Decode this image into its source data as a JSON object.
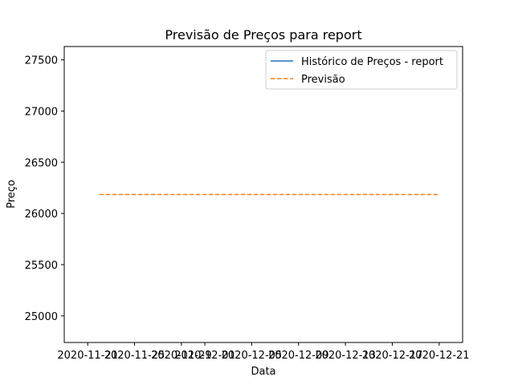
{
  "chart_data": {
    "type": "line",
    "title": "Previsão de Preços para report",
    "xlabel": "Data",
    "ylabel": "Preço",
    "x_ticks": [
      "2020-11-21",
      "2020-11-25",
      "2020-11-29",
      "2020-12-01",
      "2020-12-05",
      "2020-12-09",
      "2020-12-13",
      "2020-12-17",
      "2020-12-21"
    ],
    "y_ticks": [
      25000,
      25500,
      26000,
      26500,
      27000,
      27500
    ],
    "xlim": [
      "2020-11-19",
      "2020-12-23"
    ],
    "ylim": [
      24740,
      27630
    ],
    "grid": false,
    "legend_position": "top-right",
    "series": [
      {
        "name": "Histórico de Preços - report",
        "style": "solid",
        "color": "#1f77b4",
        "points": []
      },
      {
        "name": "Previsão",
        "style": "dashed",
        "color": "#ff7f0e",
        "points": [
          {
            "x": "2020-11-22",
            "y": 26185
          },
          {
            "x": "2020-12-21",
            "y": 26185
          }
        ]
      }
    ]
  }
}
